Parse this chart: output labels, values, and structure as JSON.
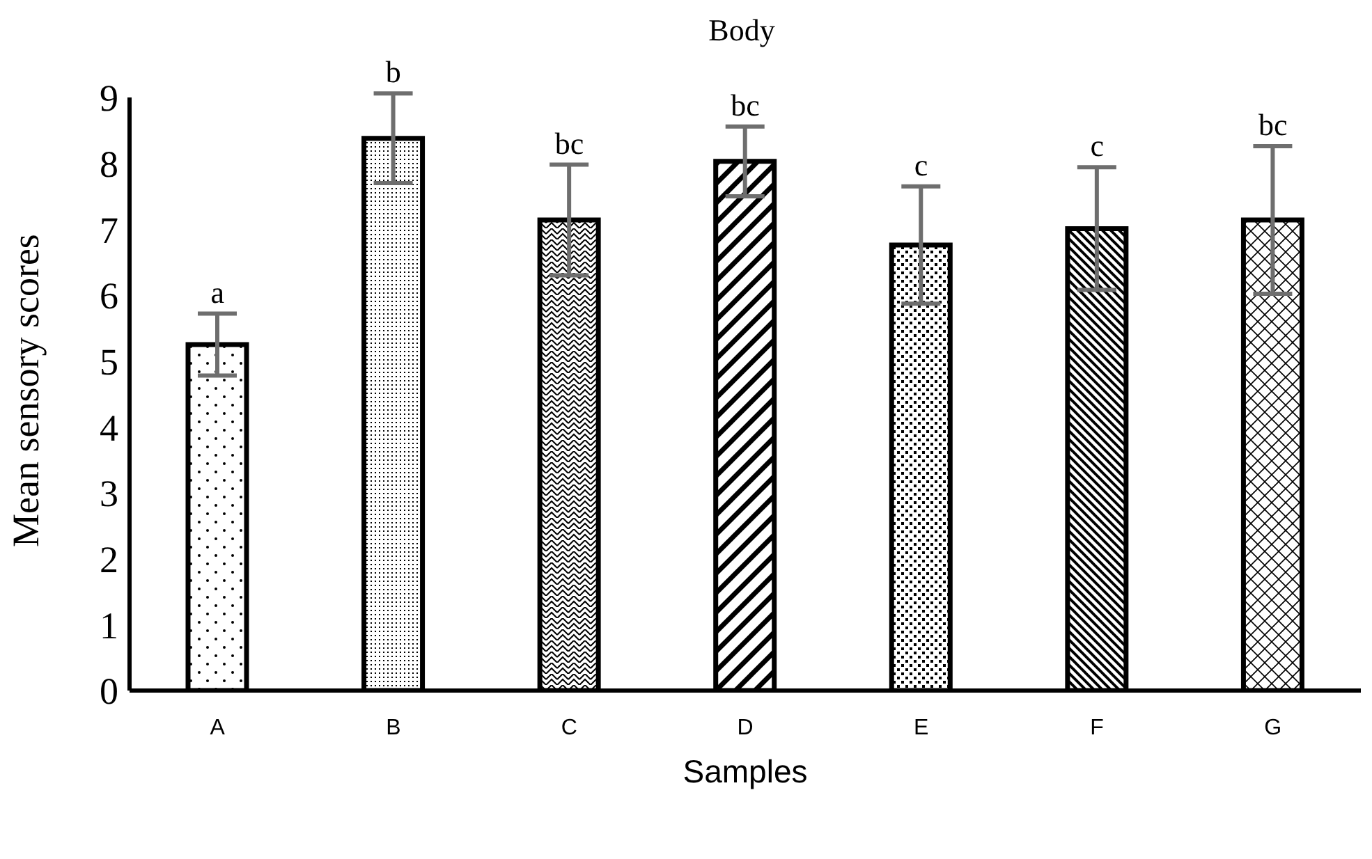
{
  "chart_data": {
    "type": "bar",
    "title": "Body",
    "xlabel": "Samples",
    "ylabel": "Mean sensory scores",
    "categories": [
      "A",
      "B",
      "C",
      "D",
      "E",
      "F",
      "G"
    ],
    "values": [
      5.25,
      8.38,
      7.14,
      8.03,
      6.76,
      7.01,
      7.14
    ],
    "errors": [
      0.47,
      0.68,
      0.84,
      0.53,
      0.89,
      0.93,
      1.12
    ],
    "color": "#000000",
    "ylim": [
      0,
      9
    ],
    "yticks": [
      0,
      1,
      2,
      3,
      4,
      5,
      6,
      7,
      8,
      9
    ],
    "grid": false,
    "legend": false,
    "annotations": [
      {
        "text": "a",
        "x": "A",
        "y": 5.72
      },
      {
        "text": "b",
        "x": "B",
        "y": 9.06
      },
      {
        "text": "bc",
        "x": "C",
        "y": 7.98
      },
      {
        "text": "bc",
        "x": "D",
        "y": 8.56
      },
      {
        "text": "c",
        "x": "E",
        "y": 7.65
      },
      {
        "text": "c",
        "x": "F",
        "y": 7.94
      },
      {
        "text": "bc",
        "x": "G",
        "y": 8.26
      }
    ]
  }
}
